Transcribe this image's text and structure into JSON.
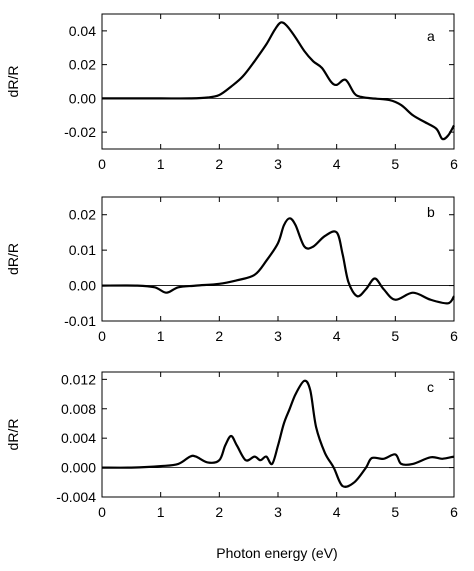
{
  "figure": {
    "xlabel": "Photon energy (eV)"
  },
  "chart_data": [
    {
      "type": "line",
      "panel_label": "a",
      "ylabel": "dR/R",
      "xlabel": "",
      "xlim": [
        0,
        6
      ],
      "ylim": [
        -0.03,
        0.05
      ],
      "xticks": [
        0,
        1,
        2,
        3,
        4,
        5,
        6
      ],
      "xtick_labels": [
        "0",
        "1",
        "2",
        "3",
        "4",
        "5",
        "6"
      ],
      "yticks": [
        0.04,
        0.02,
        0.0,
        -0.02
      ],
      "ytick_labels": [
        "0.04",
        "0.02",
        "0.00",
        "-0.02"
      ],
      "zero_line": true,
      "grid": false,
      "series": [
        {
          "x": [
            0.0,
            0.5,
            1.0,
            1.5,
            1.8,
            2.0,
            2.2,
            2.4,
            2.6,
            2.8,
            2.95,
            3.05,
            3.15,
            3.3,
            3.45,
            3.6,
            3.75,
            3.9,
            4.0,
            4.15,
            4.3,
            4.4,
            4.6,
            4.9,
            5.1,
            5.3,
            5.5,
            5.7,
            5.8,
            5.9,
            6.0
          ],
          "y": [
            0.0,
            0.0,
            0.0,
            0.0,
            0.0005,
            0.002,
            0.007,
            0.013,
            0.022,
            0.032,
            0.041,
            0.045,
            0.043,
            0.036,
            0.028,
            0.022,
            0.018,
            0.01,
            0.008,
            0.011,
            0.003,
            0.001,
            0.0,
            -0.001,
            -0.004,
            -0.01,
            -0.014,
            -0.018,
            -0.024,
            -0.022,
            -0.016
          ]
        }
      ]
    },
    {
      "type": "line",
      "panel_label": "b",
      "ylabel": "dR/R",
      "xlabel": "",
      "xlim": [
        0,
        6
      ],
      "ylim": [
        -0.01,
        0.025
      ],
      "xticks": [
        0,
        1,
        2,
        3,
        4,
        5,
        6
      ],
      "xtick_labels": [
        "0",
        "1",
        "2",
        "3",
        "4",
        "5",
        "6"
      ],
      "yticks": [
        0.02,
        0.01,
        0.0,
        -0.01
      ],
      "ytick_labels": [
        "0.02",
        "0.01",
        "0.00",
        "-0.01"
      ],
      "zero_line": true,
      "grid": false,
      "series": [
        {
          "x": [
            0.0,
            0.6,
            0.9,
            1.1,
            1.3,
            1.6,
            2.0,
            2.3,
            2.6,
            2.8,
            3.0,
            3.1,
            3.2,
            3.3,
            3.45,
            3.6,
            3.8,
            4.0,
            4.1,
            4.2,
            4.35,
            4.5,
            4.65,
            4.8,
            5.0,
            5.3,
            5.6,
            5.9,
            6.0
          ],
          "y": [
            0.0,
            0.0,
            -0.0005,
            -0.002,
            -0.0005,
            0.0,
            0.0005,
            0.0015,
            0.003,
            0.007,
            0.012,
            0.017,
            0.019,
            0.017,
            0.011,
            0.011,
            0.014,
            0.015,
            0.009,
            0.001,
            -0.003,
            -0.001,
            0.002,
            -0.001,
            -0.004,
            -0.002,
            -0.004,
            -0.005,
            -0.003
          ]
        }
      ]
    },
    {
      "type": "line",
      "panel_label": "c",
      "ylabel": "dR/R",
      "xlabel": "Photon energy (eV)",
      "xlim": [
        0,
        6
      ],
      "ylim": [
        -0.004,
        0.013
      ],
      "xticks": [
        0,
        1,
        2,
        3,
        4,
        5,
        6
      ],
      "xtick_labels": [
        "0",
        "1",
        "2",
        "3",
        "4",
        "5",
        "6"
      ],
      "yticks": [
        0.012,
        0.008,
        0.004,
        0.0,
        -0.004
      ],
      "ytick_labels": [
        "0.012",
        "0.008",
        "0.004",
        "0.000",
        "-0.004"
      ],
      "zero_line": true,
      "grid": false,
      "series": [
        {
          "x": [
            0.0,
            0.5,
            1.0,
            1.3,
            1.5,
            1.6,
            1.8,
            2.0,
            2.1,
            2.2,
            2.3,
            2.45,
            2.6,
            2.7,
            2.8,
            2.9,
            3.0,
            3.1,
            3.2,
            3.3,
            3.45,
            3.55,
            3.65,
            3.8,
            3.95,
            4.1,
            4.3,
            4.5,
            4.6,
            4.8,
            5.0,
            5.1,
            5.3,
            5.6,
            5.8,
            6.0
          ],
          "y": [
            0.0,
            0.0,
            0.0002,
            0.0005,
            0.0015,
            0.0015,
            0.0007,
            0.001,
            0.003,
            0.0043,
            0.003,
            0.001,
            0.0015,
            0.001,
            0.0015,
            0.0005,
            0.003,
            0.006,
            0.008,
            0.01,
            0.0118,
            0.0105,
            0.0055,
            0.002,
            0.0,
            -0.0025,
            -0.002,
            0.0,
            0.0013,
            0.0012,
            0.0018,
            0.0005,
            0.0005,
            0.0014,
            0.0012,
            0.0015
          ]
        }
      ]
    }
  ]
}
